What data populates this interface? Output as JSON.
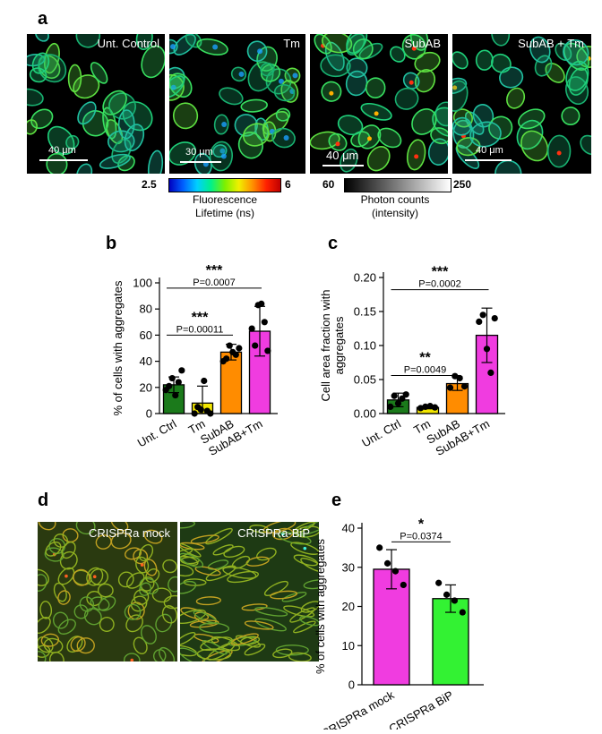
{
  "panels": {
    "a": {
      "letter": "a",
      "images": [
        {
          "label": "Unt. Control",
          "scale": "40 μm"
        },
        {
          "label": "Tm",
          "scale": "30 μm"
        },
        {
          "label": "SubAB",
          "scale": "40 μm"
        },
        {
          "label": "SubAB + Tm",
          "scale": "40 μm"
        }
      ],
      "lifetime_bar": {
        "min": "2.5",
        "max": "6",
        "title_line1": "Fluorescence",
        "title_line2": "Lifetime (ns)"
      },
      "intensity_bar": {
        "min": "60",
        "max": "250",
        "title_line1": "Photon counts",
        "title_line2": "(intensity)"
      }
    },
    "d": {
      "letter": "d",
      "images": [
        {
          "label": "CRISPRa mock"
        },
        {
          "label": "CRISPRa-BiP"
        }
      ]
    }
  },
  "colors": {
    "dark_green": "#1b7a1b",
    "yellow": "#f2e600",
    "orange": "#ff8c00",
    "magenta": "#f03ce0",
    "bright_green": "#33f233"
  },
  "chart_data": [
    {
      "panel": "b",
      "type": "bar",
      "categories": [
        "Unt. Ctrl",
        "Tm",
        "SubAB",
        "SubAB+Tm"
      ],
      "values": [
        22,
        8,
        47,
        63
      ],
      "errors": [
        6,
        13,
        6,
        19
      ],
      "points": [
        [
          18,
          21,
          27,
          14,
          24,
          33
        ],
        [
          0,
          5,
          3,
          25,
          2,
          0
        ],
        [
          40,
          42,
          52,
          47,
          45,
          50
        ],
        [
          65,
          52,
          83,
          84,
          70,
          48
        ]
      ],
      "colors": [
        "#1b7a1b",
        "#f2e600",
        "#ff8c00",
        "#f03ce0"
      ],
      "ylabel": "% of cells with aggregates",
      "ylim": [
        0,
        100
      ],
      "yticks": [
        "0",
        "20",
        "40",
        "60",
        "80",
        "100"
      ],
      "annotations": [
        {
          "stars": "***",
          "p": "P=0.00011",
          "from": 0,
          "to": 2
        },
        {
          "stars": "***",
          "p": "P=0.0007",
          "from": 0,
          "to": 3
        }
      ]
    },
    {
      "panel": "c",
      "type": "bar",
      "categories": [
        "Unt. Ctrl",
        "Tm",
        "SubAB",
        "SubAB+Tm"
      ],
      "values": [
        0.02,
        0.009,
        0.044,
        0.115
      ],
      "errors": [
        0.01,
        0.002,
        0.01,
        0.04
      ],
      "points": [
        [
          0.01,
          0.026,
          0.015,
          0.022,
          0.028
        ],
        [
          0.008,
          0.01,
          0.011,
          0.009
        ],
        [
          0.038,
          0.055,
          0.052,
          0.04
        ],
        [
          0.135,
          0.145,
          0.095,
          0.06,
          0.14
        ]
      ],
      "colors": [
        "#1b7a1b",
        "#f2e600",
        "#ff8c00",
        "#f03ce0"
      ],
      "ylabel_line1": "Cell area fraction with",
      "ylabel_line2": "aggregates",
      "ylim": [
        0,
        0.2
      ],
      "yticks": [
        "0.00",
        "0.05",
        "0.10",
        "0.15",
        "0.20"
      ],
      "annotations": [
        {
          "stars": "**",
          "p": "P=0.0049",
          "from": 0,
          "to": 2
        },
        {
          "stars": "***",
          "p": "P=0.0002",
          "from": 0,
          "to": 3
        }
      ]
    },
    {
      "panel": "e",
      "type": "bar",
      "categories": [
        "CRISPRa mock",
        "CRISPRa BiP"
      ],
      "values": [
        29.5,
        22
      ],
      "errors": [
        5,
        3.5
      ],
      "points": [
        [
          35,
          31,
          29,
          25.5
        ],
        [
          26,
          23,
          21.5,
          18.5
        ]
      ],
      "colors": [
        "#f03ce0",
        "#33f233"
      ],
      "ylabel": "% of cells with aggregates",
      "ylim": [
        0,
        40
      ],
      "yticks": [
        "0",
        "10",
        "20",
        "30",
        "40"
      ],
      "annotations": [
        {
          "stars": "*",
          "p": "P=0.0374",
          "from": 0,
          "to": 1
        }
      ]
    }
  ]
}
